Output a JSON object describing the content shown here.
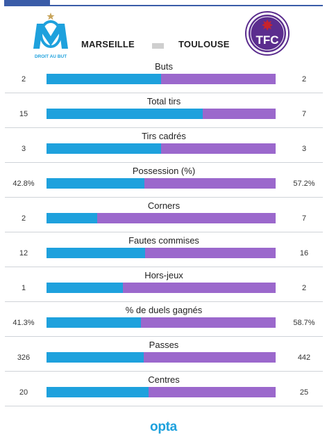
{
  "header": {
    "home_team": "MARSEILLE",
    "away_team": "TOULOUSE",
    "home_logo_text": "DROIT AU BUT",
    "away_logo_text": "TFC"
  },
  "colors": {
    "home": "#1ea1dd",
    "away": "#9b68cc"
  },
  "stats": [
    {
      "label": "Buts",
      "home": "2",
      "away": "2",
      "home_share": 50.0
    },
    {
      "label": "Total tirs",
      "home": "15",
      "away": "7",
      "home_share": 68.2
    },
    {
      "label": "Tirs cadrés",
      "home": "3",
      "away": "3",
      "home_share": 50.0
    },
    {
      "label": "Possession (%)",
      "home": "42.8%",
      "away": "57.2%",
      "home_share": 42.8
    },
    {
      "label": "Corners",
      "home": "2",
      "away": "7",
      "home_share": 22.2
    },
    {
      "label": "Fautes commises",
      "home": "12",
      "away": "16",
      "home_share": 42.9
    },
    {
      "label": "Hors-jeux",
      "home": "1",
      "away": "2",
      "home_share": 33.3
    },
    {
      "label": "% de duels gagnés",
      "home": "41.3%",
      "away": "58.7%",
      "home_share": 41.3
    },
    {
      "label": "Passes",
      "home": "326",
      "away": "442",
      "home_share": 42.4
    },
    {
      "label": "Centres",
      "home": "20",
      "away": "25",
      "home_share": 44.4
    }
  ],
  "footer": {
    "brand": "opta"
  }
}
